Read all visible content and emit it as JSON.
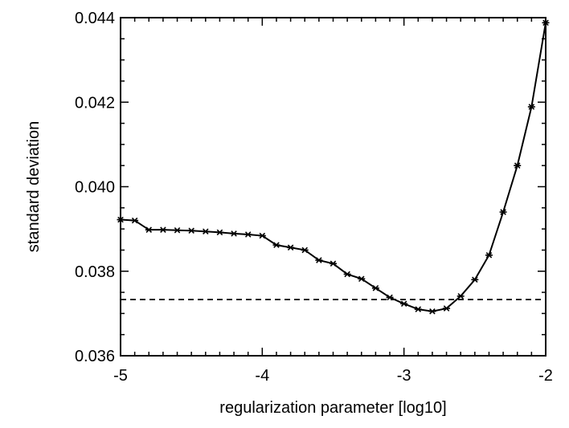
{
  "chart_data": {
    "type": "line",
    "xlabel": "regularization parameter [log10]",
    "ylabel": "standard deviation",
    "xlim": [
      -5,
      -2
    ],
    "ylim": [
      0.036,
      0.044
    ],
    "x_ticks": [
      {
        "value": -5,
        "label": "-5"
      },
      {
        "value": -4,
        "label": "-4"
      },
      {
        "value": -3,
        "label": "-3"
      },
      {
        "value": -2,
        "label": "-2"
      }
    ],
    "y_ticks": [
      {
        "value": 0.036,
        "label": "0.036"
      },
      {
        "value": 0.038,
        "label": "0.038"
      },
      {
        "value": 0.04,
        "label": "0.040"
      },
      {
        "value": 0.042,
        "label": "0.042"
      },
      {
        "value": 0.044,
        "label": "0.044"
      }
    ],
    "grid": false,
    "marker": "asterisk",
    "reference_line": {
      "y": 0.03733,
      "style": "dashed"
    },
    "series": [
      {
        "x": [
          -5.0,
          -4.9,
          -4.8,
          -4.7,
          -4.6,
          -4.5,
          -4.4,
          -4.3,
          -4.2,
          -4.1,
          -4.0,
          -3.9,
          -3.8,
          -3.7,
          -3.6,
          -3.5,
          -3.4,
          -3.3,
          -3.2,
          -3.1,
          -3.0,
          -2.9,
          -2.8,
          -2.7,
          -2.6,
          -2.5,
          -2.4,
          -2.3,
          -2.2,
          -2.1,
          -2.0
        ],
        "y": [
          0.03922,
          0.0392,
          0.03898,
          0.03898,
          0.03897,
          0.03896,
          0.03894,
          0.03892,
          0.03889,
          0.03887,
          0.03884,
          0.03862,
          0.03856,
          0.0385,
          0.03826,
          0.03818,
          0.03793,
          0.03782,
          0.0376,
          0.03738,
          0.03723,
          0.0371,
          0.03705,
          0.03712,
          0.03741,
          0.0378,
          0.03838,
          0.0394,
          0.0405,
          0.04189,
          0.04388
        ]
      }
    ]
  }
}
